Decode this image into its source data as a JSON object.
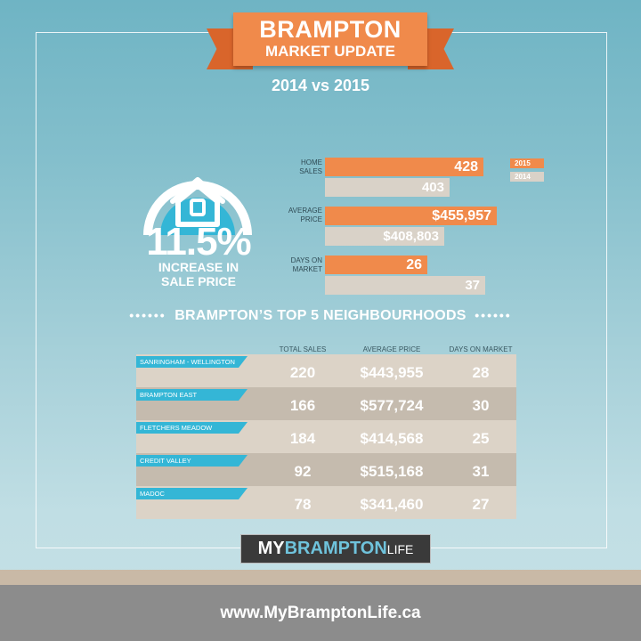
{
  "header": {
    "title": "BRAMPTON",
    "subtitle": "MARKET UPDATE",
    "comparison": "2014 vs 2015"
  },
  "highlight": {
    "value": "11.5%",
    "line1": "INCREASE IN",
    "line2": "SALE PRICE",
    "icon": "house-icon"
  },
  "comparison_metrics": [
    {
      "label_1": "HOME",
      "label_2": "SALES",
      "v2015": "428",
      "v2014": "403"
    },
    {
      "label_1": "AVERAGE",
      "label_2": "PRICE",
      "v2015": "$455,957",
      "v2014": "$408,803"
    },
    {
      "label_1": "DAYS ON",
      "label_2": "MARKET",
      "v2015": "26",
      "v2014": "37"
    }
  ],
  "legend": {
    "y2015": "2015",
    "y2014": "2014"
  },
  "neighbourhoods": {
    "heading": "BRAMPTON’S TOP 5 NEIGHBOURHOODS",
    "columns": [
      "TOTAL SALES",
      "AVERAGE PRICE",
      "DAYS ON MARKET"
    ],
    "rows": [
      {
        "name": "SANRINGHAM - WELLINGTON",
        "sales": "220",
        "price": "$443,955",
        "days": "28"
      },
      {
        "name": "BRAMPTON EAST",
        "sales": "166",
        "price": "$577,724",
        "days": "30"
      },
      {
        "name": "FLETCHERS MEADOW",
        "sales": "184",
        "price": "$414,568",
        "days": "25"
      },
      {
        "name": "CREDIT VALLEY",
        "sales": "92",
        "price": "$515,168",
        "days": "31"
      },
      {
        "name": "MADOC",
        "sales": "78",
        "price": "$341,460",
        "days": "27"
      }
    ]
  },
  "logo": {
    "my": "MY",
    "brampton": "BRAMPTON",
    "life": "LIFE"
  },
  "footer": {
    "url": "www.MyBramptonLife.ca"
  },
  "colors": {
    "orange": "#f08a4b",
    "blue": "#34b6d6",
    "beige": "#d9d2c8"
  }
}
